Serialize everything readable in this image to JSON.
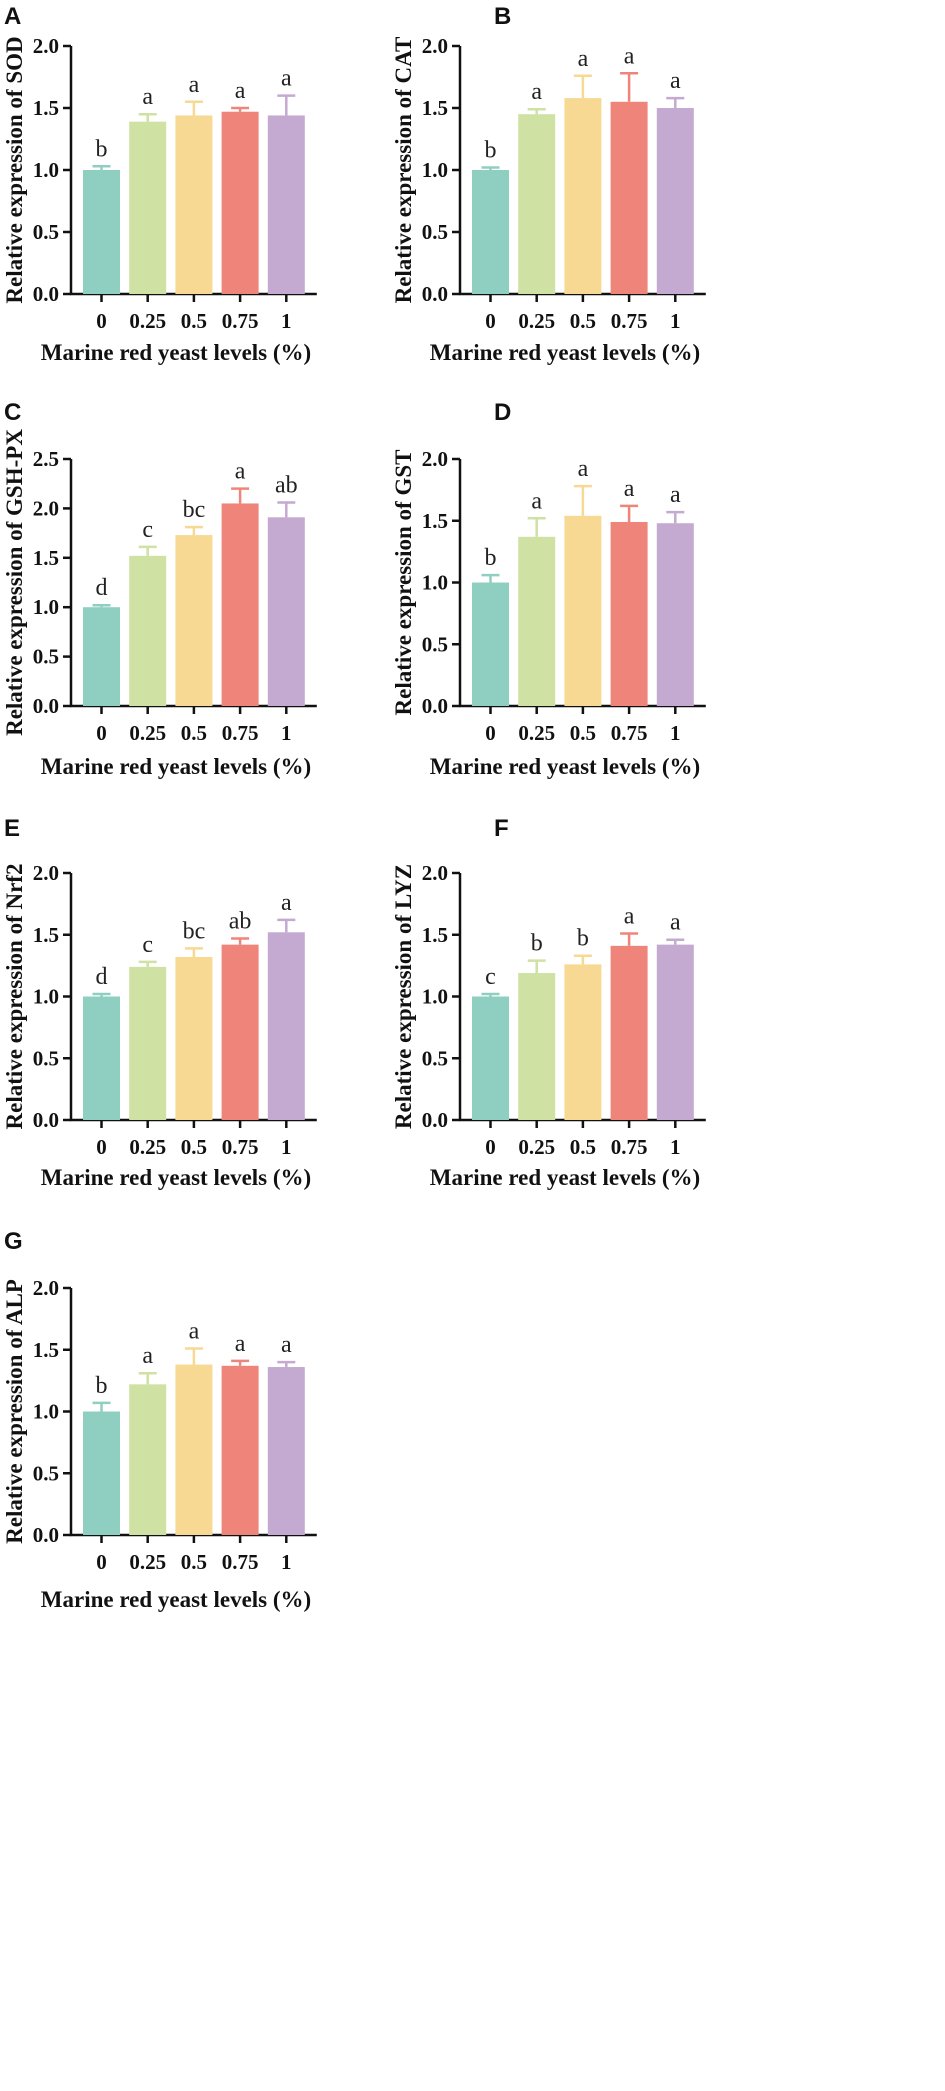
{
  "figure": {
    "xlabel": "Marine red yeast levels (%)",
    "colors": [
      "#8fcfc2",
      "#cfe1a3",
      "#f7d993",
      "#ef857a",
      "#c4a9d1"
    ]
  },
  "chart_data": [
    {
      "panel": "A",
      "type": "bar",
      "title": "",
      "ylabel": "Relative expression of SOD",
      "xlabel": "Marine red yeast levels (%)",
      "categories": [
        "0",
        "0.25",
        "0.5",
        "0.75",
        "1"
      ],
      "values": [
        1.0,
        1.39,
        1.44,
        1.47,
        1.44
      ],
      "errors": [
        0.03,
        0.06,
        0.11,
        0.03,
        0.16
      ],
      "significance": [
        "b",
        "a",
        "a",
        "a",
        "a"
      ],
      "ylim": [
        0,
        2.0
      ],
      "yticks": [
        "0.0",
        "0.5",
        "1.0",
        "1.5",
        "2.0"
      ]
    },
    {
      "panel": "B",
      "type": "bar",
      "title": "",
      "ylabel": "Relative expression of CAT",
      "xlabel": "Marine red yeast levels (%)",
      "categories": [
        "0",
        "0.25",
        "0.5",
        "0.75",
        "1"
      ],
      "values": [
        1.0,
        1.45,
        1.58,
        1.55,
        1.5
      ],
      "errors": [
        0.02,
        0.04,
        0.18,
        0.23,
        0.08
      ],
      "significance": [
        "b",
        "a",
        "a",
        "a",
        "a"
      ],
      "ylim": [
        0,
        2.0
      ],
      "yticks": [
        "0.0",
        "0.5",
        "1.0",
        "1.5",
        "2.0"
      ]
    },
    {
      "panel": "C",
      "type": "bar",
      "title": "",
      "ylabel": "Relative expression of GSH-PX",
      "xlabel": "Marine red yeast levels (%)",
      "categories": [
        "0",
        "0.25",
        "0.5",
        "0.75",
        "1"
      ],
      "values": [
        1.0,
        1.52,
        1.73,
        2.05,
        1.91
      ],
      "errors": [
        0.02,
        0.09,
        0.08,
        0.15,
        0.15
      ],
      "significance": [
        "d",
        "c",
        "bc",
        "a",
        "ab"
      ],
      "ylim": [
        0,
        2.5
      ],
      "yticks": [
        "0.0",
        "0.5",
        "1.0",
        "1.5",
        "2.0",
        "2.5"
      ]
    },
    {
      "panel": "D",
      "type": "bar",
      "title": "",
      "ylabel": "Relative expression of GST",
      "xlabel": "Marine red yeast levels (%)",
      "categories": [
        "0",
        "0.25",
        "0.5",
        "0.75",
        "1"
      ],
      "values": [
        1.0,
        1.37,
        1.54,
        1.49,
        1.48
      ],
      "errors": [
        0.06,
        0.15,
        0.24,
        0.13,
        0.09
      ],
      "significance": [
        "b",
        "a",
        "a",
        "a",
        "a"
      ],
      "ylim": [
        0,
        2.0
      ],
      "yticks": [
        "0.0",
        "0.5",
        "1.0",
        "1.5",
        "2.0"
      ]
    },
    {
      "panel": "E",
      "type": "bar",
      "title": "",
      "ylabel": "Relative expression of Nrf2",
      "xlabel": "Marine red yeast levels (%)",
      "categories": [
        "0",
        "0.25",
        "0.5",
        "0.75",
        "1"
      ],
      "values": [
        1.0,
        1.24,
        1.32,
        1.42,
        1.52
      ],
      "errors": [
        0.02,
        0.04,
        0.07,
        0.05,
        0.1
      ],
      "significance": [
        "d",
        "c",
        "bc",
        "ab",
        "a"
      ],
      "ylim": [
        0,
        2.0
      ],
      "yticks": [
        "0.0",
        "0.5",
        "1.0",
        "1.5",
        "2.0"
      ]
    },
    {
      "panel": "F",
      "type": "bar",
      "title": "",
      "ylabel": "Relative expression of LYZ",
      "xlabel": "Marine red yeast levels (%)",
      "categories": [
        "0",
        "0.25",
        "0.5",
        "0.75",
        "1"
      ],
      "values": [
        1.0,
        1.19,
        1.26,
        1.41,
        1.42
      ],
      "errors": [
        0.02,
        0.1,
        0.07,
        0.1,
        0.04
      ],
      "significance": [
        "c",
        "b",
        "b",
        "a",
        "a"
      ],
      "ylim": [
        0,
        2.0
      ],
      "yticks": [
        "0.0",
        "0.5",
        "1.0",
        "1.5",
        "2.0"
      ]
    },
    {
      "panel": "G",
      "type": "bar",
      "title": "",
      "ylabel": "Relative expression of ALP",
      "xlabel": "Marine red yeast levels (%)",
      "categories": [
        "0",
        "0.25",
        "0.5",
        "0.75",
        "1"
      ],
      "values": [
        1.0,
        1.22,
        1.38,
        1.37,
        1.36
      ],
      "errors": [
        0.07,
        0.09,
        0.13,
        0.04,
        0.04
      ],
      "significance": [
        "b",
        "a",
        "a",
        "a",
        "a"
      ],
      "ylim": [
        0,
        2.0
      ],
      "yticks": [
        "0.0",
        "0.5",
        "1.0",
        "1.5",
        "2.0"
      ]
    }
  ]
}
